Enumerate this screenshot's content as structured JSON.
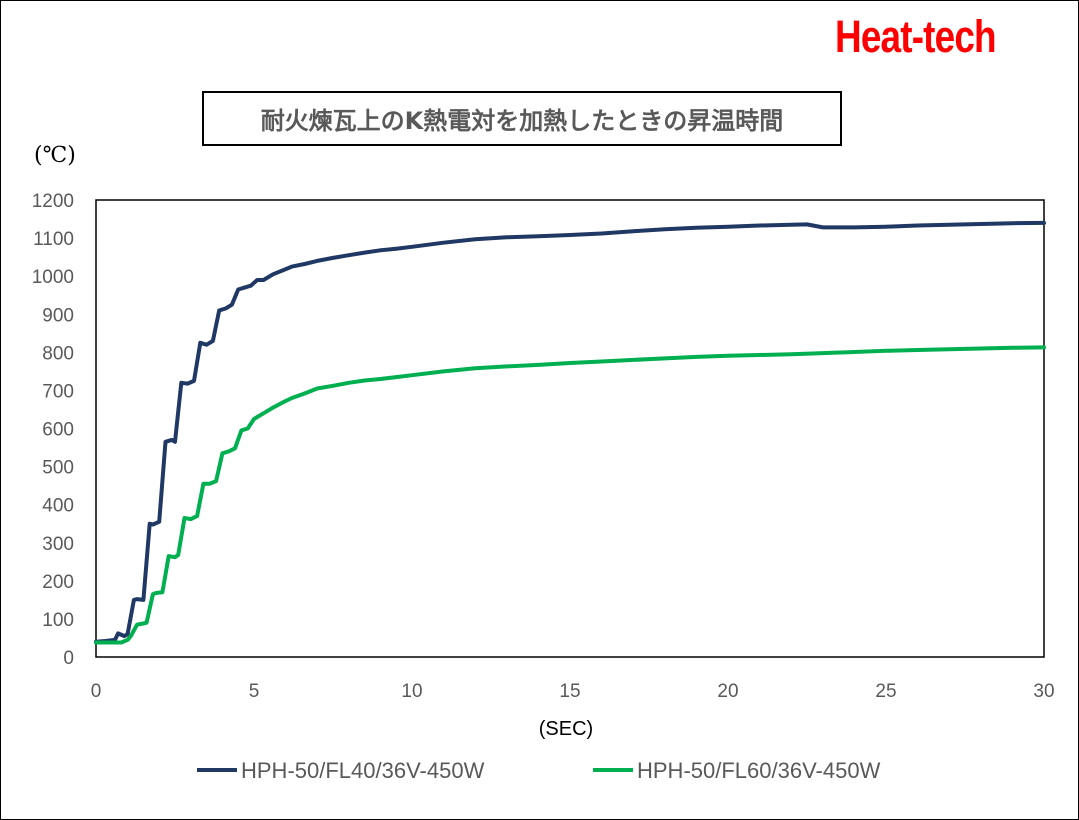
{
  "brand": {
    "text": "Heat-tech",
    "color": "#ff0000"
  },
  "chart_data": {
    "type": "line",
    "title": "耐火煉瓦上のK熱電対を加熱したときの昇温時間",
    "ylabel": "(℃)",
    "xlabel": "(SEC)",
    "xlim": [
      0,
      30
    ],
    "ylim": [
      0,
      1200
    ],
    "xticks": [
      0,
      5,
      10,
      15,
      20,
      25,
      30
    ],
    "yticks": [
      0,
      100,
      200,
      300,
      400,
      500,
      600,
      700,
      800,
      900,
      1000,
      1100,
      1200
    ],
    "grid": false,
    "legend_position": "bottom",
    "series": [
      {
        "name": "HPH-50/FL40/36V-450W",
        "color": "#203864",
        "x": [
          0,
          0.3,
          0.6,
          0.7,
          0.9,
          1.0,
          1.2,
          1.3,
          1.5,
          1.7,
          1.8,
          2.0,
          2.2,
          2.4,
          2.5,
          2.7,
          2.9,
          3.1,
          3.3,
          3.5,
          3.7,
          3.9,
          4.1,
          4.3,
          4.5,
          4.7,
          4.9,
          5.1,
          5.3,
          5.6,
          5.9,
          6.2,
          6.6,
          7.0,
          7.5,
          8.0,
          8.5,
          9.0,
          9.5,
          10,
          11,
          12,
          13,
          14,
          15,
          16,
          17,
          18,
          19,
          20,
          21,
          22,
          22.5,
          23,
          24,
          25,
          26,
          27,
          28,
          29,
          30
        ],
        "values": [
          40,
          42,
          45,
          62,
          55,
          60,
          150,
          152,
          150,
          350,
          348,
          355,
          565,
          570,
          565,
          720,
          718,
          725,
          825,
          820,
          830,
          910,
          915,
          925,
          965,
          970,
          975,
          990,
          990,
          1005,
          1015,
          1025,
          1032,
          1040,
          1048,
          1055,
          1062,
          1068,
          1072,
          1077,
          1088,
          1097,
          1102,
          1105,
          1108,
          1112,
          1118,
          1123,
          1127,
          1130,
          1133,
          1135,
          1136,
          1128,
          1128,
          1130,
          1133,
          1135,
          1137,
          1139,
          1140
        ]
      },
      {
        "name": "HPH-50/FL60/36V-450W",
        "color": "#00b050",
        "x": [
          0,
          0.5,
          0.8,
          1.0,
          1.1,
          1.3,
          1.5,
          1.6,
          1.8,
          1.9,
          2.1,
          2.3,
          2.5,
          2.6,
          2.8,
          3.0,
          3.2,
          3.4,
          3.6,
          3.8,
          4.0,
          4.2,
          4.4,
          4.6,
          4.8,
          5.0,
          5.3,
          5.6,
          5.9,
          6.2,
          6.6,
          7.0,
          7.5,
          8.0,
          8.5,
          9.0,
          9.5,
          10,
          11,
          12,
          13,
          14,
          15,
          16,
          17,
          18,
          19,
          20,
          21,
          22,
          23,
          24,
          25,
          26,
          27,
          28,
          29,
          30
        ],
        "values": [
          38,
          38,
          38,
          45,
          55,
          85,
          88,
          90,
          165,
          168,
          170,
          265,
          262,
          268,
          365,
          362,
          370,
          455,
          455,
          462,
          535,
          540,
          548,
          595,
          600,
          625,
          640,
          655,
          668,
          680,
          692,
          705,
          712,
          720,
          726,
          730,
          735,
          740,
          750,
          758,
          763,
          767,
          772,
          776,
          780,
          784,
          788,
          791,
          793,
          795,
          798,
          801,
          804,
          806,
          808,
          810,
          812,
          813
        ]
      }
    ]
  }
}
